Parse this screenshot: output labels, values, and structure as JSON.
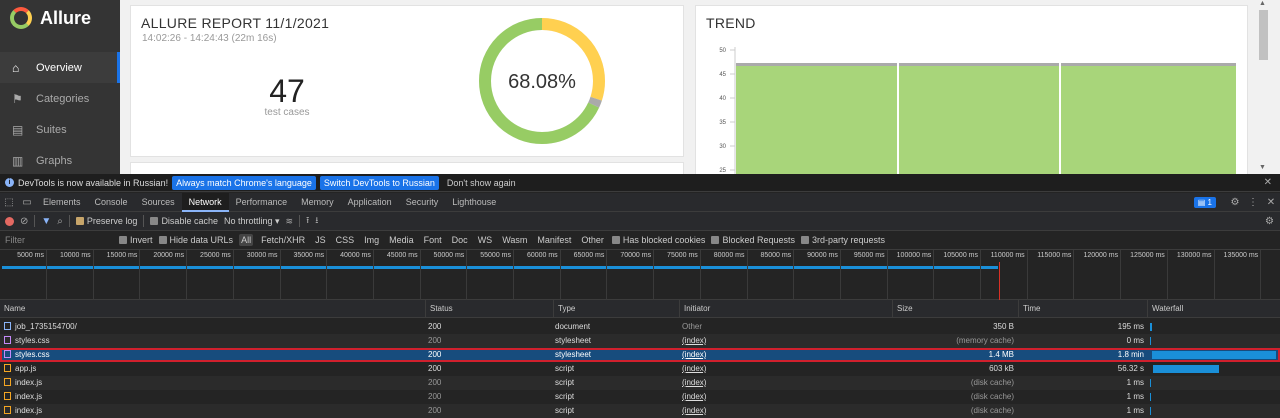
{
  "app": {
    "brand": "Allure",
    "nav": [
      {
        "label": "Overview",
        "icon": "home-icon",
        "active": true
      },
      {
        "label": "Categories",
        "icon": "flag-icon"
      },
      {
        "label": "Suites",
        "icon": "briefcase-icon"
      },
      {
        "label": "Graphs",
        "icon": "bar-chart-icon"
      }
    ],
    "report": {
      "title": "ALLURE REPORT 11/1/2021",
      "time_range": "14:02:26 - 14:24:43 (22m 16s)",
      "count": "47",
      "count_label": "test cases",
      "percent": "68.08%",
      "colors": {
        "passed": "#97cc64",
        "broken": "#ffd050",
        "skipped": "#aaaaaa"
      },
      "donut_fractions": {
        "passed": 0.6808,
        "broken": 0.3,
        "skipped": 0.0192
      }
    },
    "trend": {
      "title": "TREND",
      "y_ticks": [
        "50",
        "45",
        "40",
        "35",
        "30",
        "25"
      ],
      "fill_color": "#97cc64"
    }
  },
  "devtools": {
    "infobar": {
      "message": "DevTools is now available in Russian!",
      "btn_match": "Always match Chrome's language",
      "btn_switch": "Switch DevTools to Russian",
      "dont_show": "Don't show again"
    },
    "tabs": [
      "Elements",
      "Console",
      "Sources",
      "Network",
      "Performance",
      "Memory",
      "Application",
      "Security",
      "Lighthouse"
    ],
    "active_tab": "Network",
    "issues_count": "1",
    "toolbar": {
      "preserve_log": "Preserve log",
      "disable_cache": "Disable cache",
      "throttling": "No throttling"
    },
    "filter": {
      "placeholder": "Filter",
      "invert": "Invert",
      "hide_data_urls": "Hide data URLs",
      "types": [
        "All",
        "Fetch/XHR",
        "JS",
        "CSS",
        "Img",
        "Media",
        "Font",
        "Doc",
        "WS",
        "Wasm",
        "Manifest",
        "Other"
      ],
      "has_blocked_cookies": "Has blocked cookies",
      "blocked_requests": "Blocked Requests",
      "third_party": "3rd-party requests"
    },
    "timeline_ticks": [
      "5000 ms",
      "10000 ms",
      "15000 ms",
      "20000 ms",
      "25000 ms",
      "30000 ms",
      "35000 ms",
      "40000 ms",
      "45000 ms",
      "50000 ms",
      "55000 ms",
      "60000 ms",
      "65000 ms",
      "70000 ms",
      "75000 ms",
      "80000 ms",
      "85000 ms",
      "90000 ms",
      "95000 ms",
      "100000 ms",
      "105000 ms",
      "110000 ms",
      "115000 ms",
      "120000 ms",
      "125000 ms",
      "130000 ms",
      "135000 ms"
    ],
    "columns": {
      "name": "Name",
      "status": "Status",
      "type": "Type",
      "initiator": "Initiator",
      "size": "Size",
      "time": "Time",
      "waterfall": "Waterfall"
    },
    "rows": [
      {
        "name": "job_1735154700/",
        "icon": "doc",
        "status": "200",
        "type": "document",
        "initiator": "Other",
        "size": "350 B",
        "time": "195 ms"
      },
      {
        "name": "styles.css",
        "icon": "css",
        "status": "200",
        "type": "stylesheet",
        "initiator": "(index)",
        "size": "(memory cache)",
        "time": "0 ms"
      },
      {
        "name": "styles.css",
        "icon": "css",
        "status": "200",
        "type": "stylesheet",
        "initiator": "(index)",
        "size": "1.4 MB",
        "time": "1.8 min",
        "selected": true
      },
      {
        "name": "app.js",
        "icon": "js",
        "status": "200",
        "type": "script",
        "initiator": "(index)",
        "size": "603 kB",
        "time": "56.32 s"
      },
      {
        "name": "index.js",
        "icon": "js",
        "status": "200",
        "type": "script",
        "initiator": "(index)",
        "size": "(disk cache)",
        "time": "1 ms"
      },
      {
        "name": "index.js",
        "icon": "js",
        "status": "200",
        "type": "script",
        "initiator": "(index)",
        "size": "(disk cache)",
        "time": "1 ms"
      },
      {
        "name": "index.js",
        "icon": "js",
        "status": "200",
        "type": "script",
        "initiator": "(index)",
        "size": "(disk cache)",
        "time": "1 ms"
      }
    ]
  }
}
